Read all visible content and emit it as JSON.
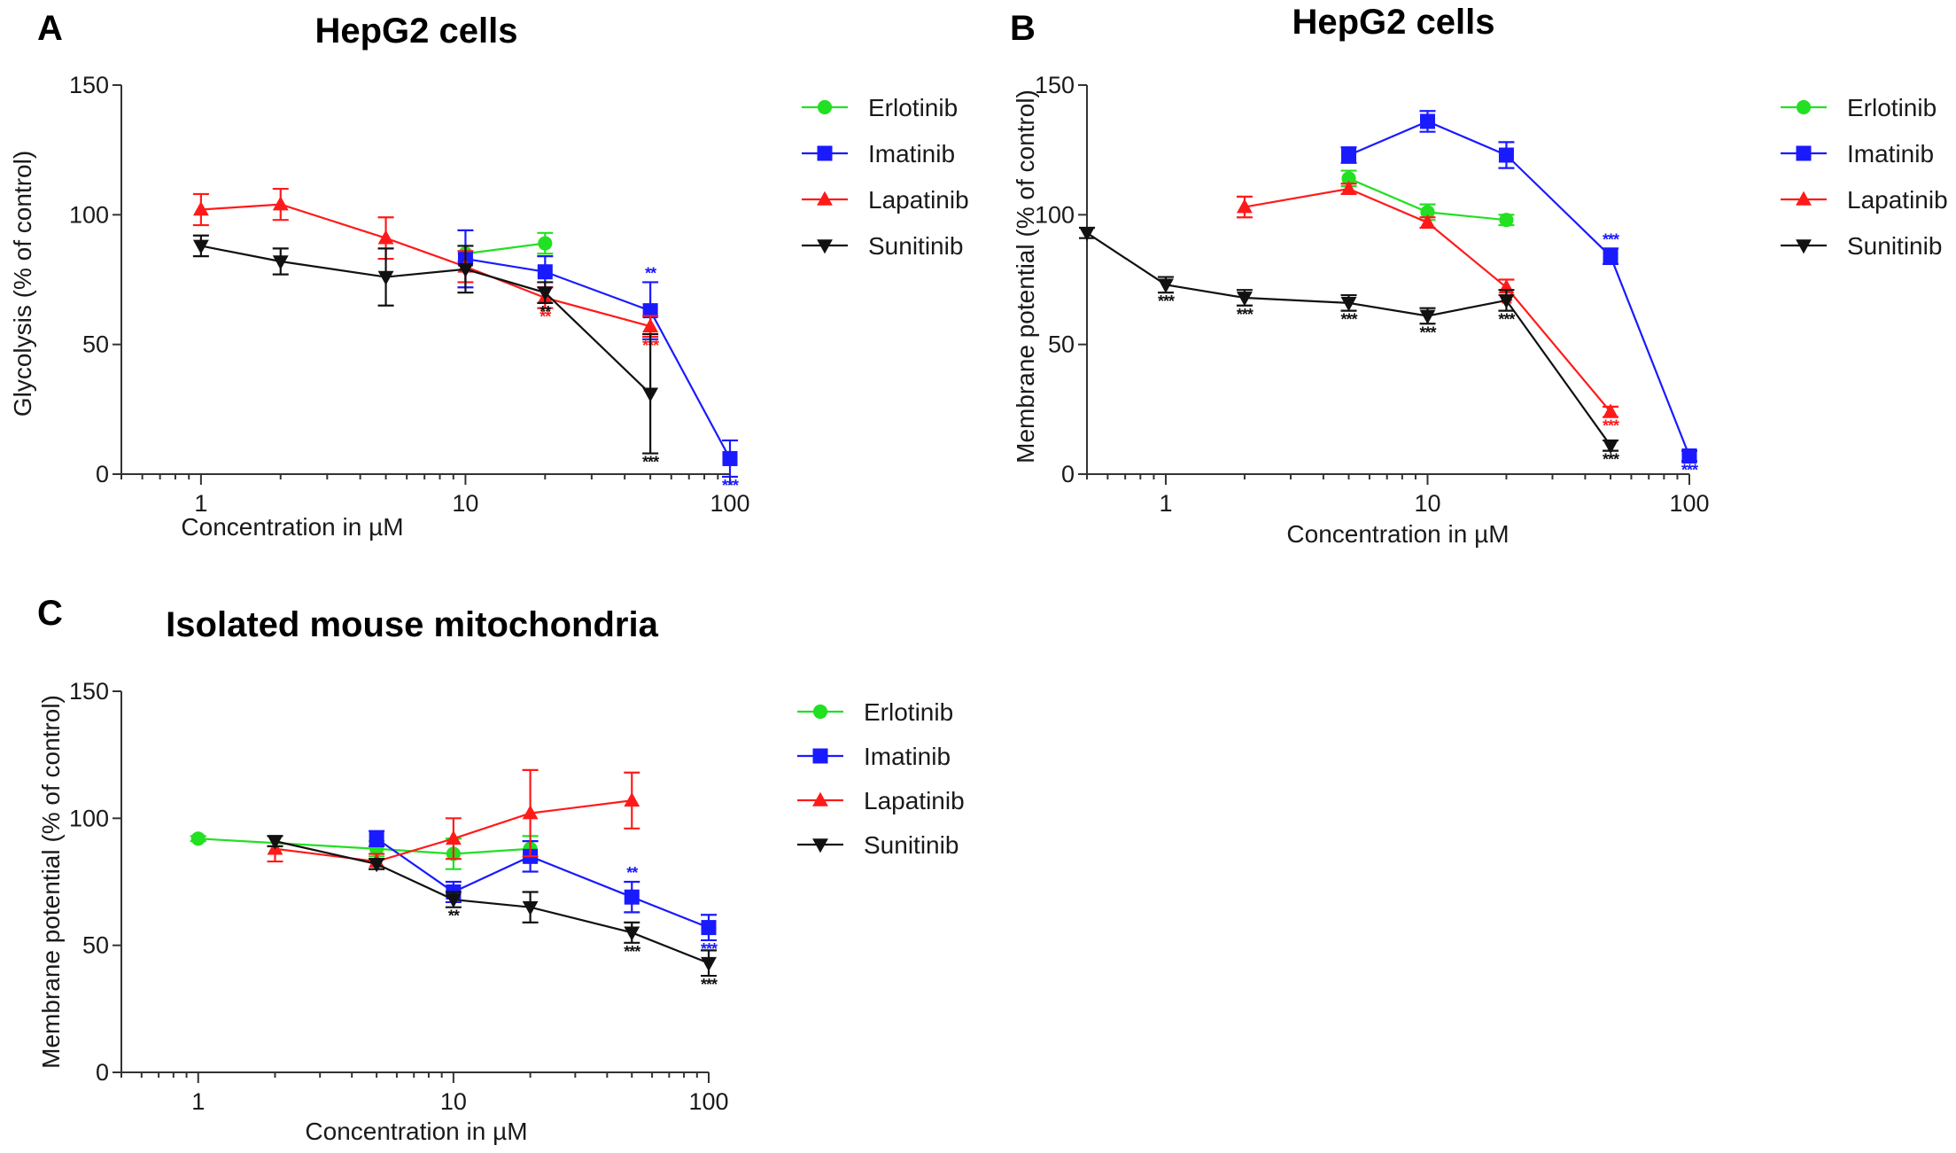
{
  "colors": {
    "Erlotinib": "#22e022",
    "Imatinib": "#1a1aff",
    "Lapatinib": "#ff1a1a",
    "Sunitinib": "#111111",
    "axis": "#333333"
  },
  "chart_data": [
    {
      "type": "line",
      "panel": "A",
      "title": "HepG2 cells",
      "xlabel": "Concentration in µM",
      "ylabel": "Glycolysis (% of control)",
      "xscale": "log",
      "xlim": [
        0.5,
        100
      ],
      "ylim": [
        0,
        150
      ],
      "xticks": [
        "1",
        "10",
        "100"
      ],
      "yticks": [
        "0",
        "50",
        "100",
        "150"
      ],
      "legend": {
        "placement": "right",
        "entries": [
          "Erlotinib",
          "Imatinib",
          "Lapatinib",
          "Sunitinib"
        ]
      },
      "series": [
        {
          "name": "Erlotinib",
          "marker": "circle",
          "points": [
            {
              "x": 10,
              "y": 85,
              "err": 3
            },
            {
              "x": 20,
              "y": 89,
              "err": 4
            }
          ]
        },
        {
          "name": "Imatinib",
          "marker": "square",
          "points": [
            {
              "x": 10,
              "y": 83,
              "err": 11
            },
            {
              "x": 20,
              "y": 78,
              "err": 6
            },
            {
              "x": 50,
              "y": 63,
              "err": 11,
              "sig": "**"
            },
            {
              "x": 100,
              "y": 6,
              "err": 7,
              "sig": "***"
            }
          ]
        },
        {
          "name": "Lapatinib",
          "marker": "triangle-up",
          "points": [
            {
              "x": 1,
              "y": 102,
              "err": 6
            },
            {
              "x": 2,
              "y": 104,
              "err": 6
            },
            {
              "x": 5,
              "y": 91,
              "err": 8
            },
            {
              "x": 10,
              "y": 80,
              "err": 6
            },
            {
              "x": 20,
              "y": 68,
              "err": 4,
              "sig": "**"
            },
            {
              "x": 50,
              "y": 57,
              "err": 4,
              "sig": "***"
            }
          ]
        },
        {
          "name": "Sunitinib",
          "marker": "triangle-down",
          "points": [
            {
              "x": 1,
              "y": 88,
              "err": 4
            },
            {
              "x": 2,
              "y": 82,
              "err": 5
            },
            {
              "x": 5,
              "y": 76,
              "err": 11
            },
            {
              "x": 10,
              "y": 79,
              "err": 9
            },
            {
              "x": 20,
              "y": 70,
              "err": 4,
              "sig": "**"
            },
            {
              "x": 50,
              "y": 31,
              "err": 23,
              "sig": "***"
            }
          ]
        }
      ]
    },
    {
      "type": "line",
      "panel": "B",
      "title": "HepG2 cells",
      "xlabel": "Concentration in µM",
      "ylabel": "Membrane potential (% of control)",
      "xscale": "log",
      "xlim": [
        0.5,
        100
      ],
      "ylim": [
        0,
        150
      ],
      "xticks": [
        "1",
        "10",
        "100"
      ],
      "yticks": [
        "0",
        "50",
        "100",
        "150"
      ],
      "legend": {
        "placement": "right",
        "entries": [
          "Erlotinib",
          "Imatinib",
          "Lapatinib",
          "Sunitinib"
        ]
      },
      "series": [
        {
          "name": "Erlotinib",
          "marker": "circle",
          "points": [
            {
              "x": 5,
              "y": 114,
              "err": 3
            },
            {
              "x": 10,
              "y": 101,
              "err": 3
            },
            {
              "x": 20,
              "y": 98,
              "err": 2
            }
          ]
        },
        {
          "name": "Imatinib",
          "marker": "square",
          "points": [
            {
              "x": 5,
              "y": 123,
              "err": 3
            },
            {
              "x": 10,
              "y": 136,
              "err": 4
            },
            {
              "x": 20,
              "y": 123,
              "err": 5
            },
            {
              "x": 50,
              "y": 84,
              "err": 3,
              "sig": "***"
            },
            {
              "x": 100,
              "y": 7,
              "err": 2,
              "sig": "***"
            }
          ]
        },
        {
          "name": "Lapatinib",
          "marker": "triangle-up",
          "points": [
            {
              "x": 2,
              "y": 103,
              "err": 4
            },
            {
              "x": 5,
              "y": 110,
              "err": 2
            },
            {
              "x": 10,
              "y": 97,
              "err": 2
            },
            {
              "x": 20,
              "y": 72,
              "err": 3,
              "sig": "**"
            },
            {
              "x": 50,
              "y": 24,
              "err": 2,
              "sig": "***"
            }
          ]
        },
        {
          "name": "Sunitinib",
          "marker": "triangle-down",
          "points": [
            {
              "x": 0.5,
              "y": 93,
              "err": 2
            },
            {
              "x": 1,
              "y": 73,
              "err": 3,
              "sig": "***"
            },
            {
              "x": 2,
              "y": 68,
              "err": 3,
              "sig": "***"
            },
            {
              "x": 5,
              "y": 66,
              "err": 3,
              "sig": "***"
            },
            {
              "x": 10,
              "y": 61,
              "err": 3,
              "sig": "***"
            },
            {
              "x": 20,
              "y": 67,
              "err": 4,
              "sig": "***"
            },
            {
              "x": 50,
              "y": 11,
              "err": 2,
              "sig": "***"
            }
          ]
        }
      ]
    },
    {
      "type": "line",
      "panel": "C",
      "title": "Isolated mouse mitochondria",
      "xlabel": "Concentration in µM",
      "ylabel": "Membrane potential (% of control)",
      "xscale": "log",
      "xlim": [
        0.5,
        100
      ],
      "ylim": [
        0,
        150
      ],
      "xticks": [
        "1",
        "10",
        "100"
      ],
      "yticks": [
        "0",
        "50",
        "100",
        "150"
      ],
      "legend": {
        "placement": "right",
        "entries": [
          "Erlotinib",
          "Imatinib",
          "Lapatinib",
          "Sunitinib"
        ]
      },
      "series": [
        {
          "name": "Erlotinib",
          "marker": "circle",
          "points": [
            {
              "x": 1,
              "y": 92,
              "err": 1
            },
            {
              "x": 5,
              "y": 88,
              "err": 3
            },
            {
              "x": 10,
              "y": 86,
              "err": 6
            },
            {
              "x": 20,
              "y": 88,
              "err": 5
            }
          ]
        },
        {
          "name": "Imatinib",
          "marker": "square",
          "points": [
            {
              "x": 5,
              "y": 92,
              "err": 3
            },
            {
              "x": 10,
              "y": 71,
              "err": 4
            },
            {
              "x": 20,
              "y": 85,
              "err": 6
            },
            {
              "x": 50,
              "y": 69,
              "err": 6,
              "sig": "**"
            },
            {
              "x": 100,
              "y": 57,
              "err": 5,
              "sig": "***"
            }
          ]
        },
        {
          "name": "Lapatinib",
          "marker": "triangle-up",
          "points": [
            {
              "x": 2,
              "y": 88,
              "err": 5
            },
            {
              "x": 5,
              "y": 83,
              "err": 3
            },
            {
              "x": 10,
              "y": 92,
              "err": 8
            },
            {
              "x": 20,
              "y": 102,
              "err": 17
            },
            {
              "x": 50,
              "y": 107,
              "err": 11
            }
          ]
        },
        {
          "name": "Sunitinib",
          "marker": "triangle-down",
          "points": [
            {
              "x": 2,
              "y": 91,
              "err": 2
            },
            {
              "x": 5,
              "y": 82,
              "err": 2
            },
            {
              "x": 10,
              "y": 68,
              "err": 3,
              "sig": "**"
            },
            {
              "x": 20,
              "y": 65,
              "err": 6
            },
            {
              "x": 50,
              "y": 55,
              "err": 4,
              "sig": "***"
            },
            {
              "x": 100,
              "y": 43,
              "err": 5,
              "sig": "***"
            }
          ]
        }
      ]
    }
  ]
}
